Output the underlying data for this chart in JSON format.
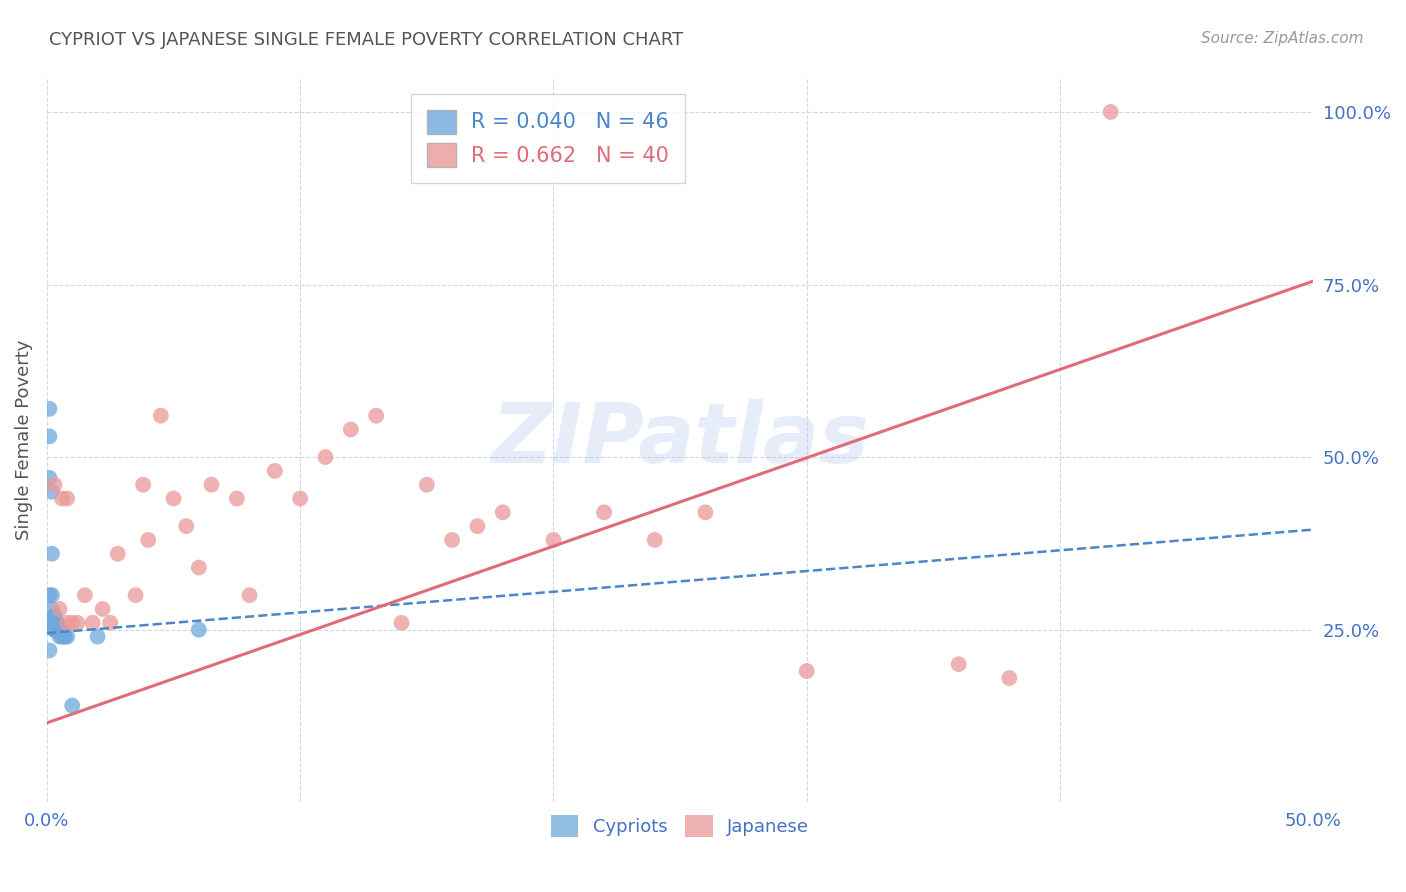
{
  "title": "CYPRIOT VS JAPANESE SINGLE FEMALE POVERTY CORRELATION CHART",
  "source": "Source: ZipAtlas.com",
  "ylabel": "Single Female Poverty",
  "watermark": "ZIPatlas",
  "xlim": [
    0.0,
    0.5
  ],
  "ylim": [
    0.0,
    1.05
  ],
  "xticks": [
    0.0,
    0.1,
    0.2,
    0.3,
    0.4,
    0.5
  ],
  "xticklabels": [
    "0.0%",
    "",
    "",
    "",
    "",
    "50.0%"
  ],
  "yticks": [
    0.0,
    0.25,
    0.5,
    0.75,
    1.0
  ],
  "yticklabels": [
    "",
    "25.0%",
    "50.0%",
    "75.0%",
    "100.0%"
  ],
  "cypriot_color": "#6fa8dc",
  "japanese_color": "#ea9999",
  "cypriot_R": 0.04,
  "cypriot_N": 46,
  "japanese_R": 0.662,
  "japanese_N": 40,
  "cypriot_line_color": "#4a86c8",
  "japanese_line_color": "#e06c7a",
  "legend_label_cypriot": "Cypriots",
  "legend_label_japanese": "Japanese",
  "cypriot_x": [
    0.001,
    0.001,
    0.001,
    0.001,
    0.001,
    0.002,
    0.002,
    0.002,
    0.002,
    0.002,
    0.003,
    0.003,
    0.003,
    0.003,
    0.003,
    0.003,
    0.003,
    0.003,
    0.003,
    0.003,
    0.004,
    0.004,
    0.004,
    0.004,
    0.004,
    0.004,
    0.004,
    0.004,
    0.004,
    0.004,
    0.005,
    0.005,
    0.005,
    0.005,
    0.005,
    0.005,
    0.005,
    0.005,
    0.006,
    0.006,
    0.007,
    0.007,
    0.008,
    0.01,
    0.02,
    0.06
  ],
  "cypriot_y": [
    0.57,
    0.53,
    0.47,
    0.3,
    0.22,
    0.45,
    0.36,
    0.3,
    0.28,
    0.26,
    0.27,
    0.27,
    0.26,
    0.26,
    0.26,
    0.26,
    0.26,
    0.25,
    0.25,
    0.25,
    0.26,
    0.26,
    0.26,
    0.26,
    0.26,
    0.26,
    0.25,
    0.25,
    0.25,
    0.25,
    0.25,
    0.25,
    0.25,
    0.25,
    0.25,
    0.25,
    0.25,
    0.24,
    0.25,
    0.24,
    0.24,
    0.24,
    0.24,
    0.14,
    0.24,
    0.25
  ],
  "japanese_x": [
    0.003,
    0.005,
    0.006,
    0.008,
    0.008,
    0.01,
    0.012,
    0.015,
    0.018,
    0.022,
    0.025,
    0.028,
    0.035,
    0.038,
    0.04,
    0.045,
    0.05,
    0.055,
    0.06,
    0.065,
    0.075,
    0.08,
    0.09,
    0.1,
    0.11,
    0.12,
    0.13,
    0.14,
    0.15,
    0.16,
    0.17,
    0.18,
    0.2,
    0.22,
    0.24,
    0.26,
    0.3,
    0.36,
    0.38,
    0.42
  ],
  "japanese_y": [
    0.46,
    0.28,
    0.44,
    0.44,
    0.26,
    0.26,
    0.26,
    0.3,
    0.26,
    0.28,
    0.26,
    0.36,
    0.3,
    0.46,
    0.38,
    0.56,
    0.44,
    0.4,
    0.34,
    0.46,
    0.44,
    0.3,
    0.48,
    0.44,
    0.5,
    0.54,
    0.56,
    0.26,
    0.46,
    0.38,
    0.4,
    0.42,
    0.38,
    0.42,
    0.38,
    0.42,
    0.19,
    0.2,
    0.18,
    1.0
  ],
  "background_color": "#ffffff",
  "grid_color": "#d0d8e8",
  "title_color": "#555555",
  "tick_color": "#4472c4"
}
